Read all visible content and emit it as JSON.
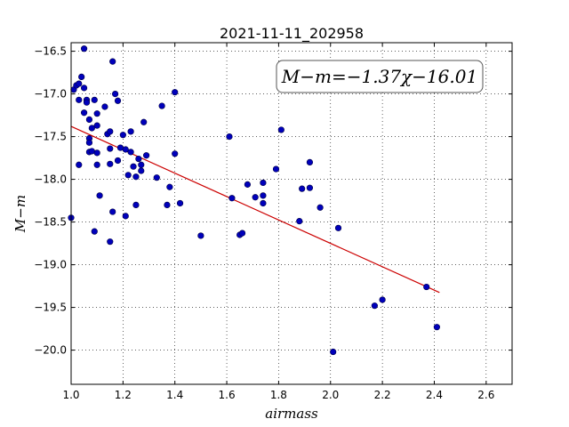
{
  "chart_data": {
    "type": "scatter",
    "title": "2021-11-11_202958",
    "xlabel": "airmass",
    "ylabel": "M−m",
    "xlim": [
      1.0,
      2.7
    ],
    "ylim": [
      -20.4,
      -16.4
    ],
    "y_inverted": true,
    "grid": true,
    "xticks": [
      "1.0",
      "1.2",
      "1.4",
      "1.6",
      "1.8",
      "2.0",
      "2.2",
      "2.4",
      "2.6"
    ],
    "yticks": [
      "−16.5",
      "−17.0",
      "−17.5",
      "−18.0",
      "−18.5",
      "−19.0",
      "−19.5",
      "−20.0"
    ],
    "annotation": "M−m=−1.37χ−16.01",
    "fit": {
      "slope": -1.37,
      "intercept": -16.01,
      "x_range": [
        1.0,
        2.42
      ],
      "color": "#cc0000"
    },
    "point_color": "#0000bb",
    "points": [
      [
        1.0,
        -18.45
      ],
      [
        1.01,
        -16.95
      ],
      [
        1.02,
        -16.9
      ],
      [
        1.03,
        -17.07
      ],
      [
        1.03,
        -16.88
      ],
      [
        1.03,
        -17.83
      ],
      [
        1.04,
        -16.8
      ],
      [
        1.05,
        -16.47
      ],
      [
        1.05,
        -16.93
      ],
      [
        1.05,
        -17.22
      ],
      [
        1.06,
        -17.07
      ],
      [
        1.06,
        -17.1
      ],
      [
        1.07,
        -17.3
      ],
      [
        1.07,
        -17.52
      ],
      [
        1.07,
        -17.57
      ],
      [
        1.07,
        -17.68
      ],
      [
        1.08,
        -17.4
      ],
      [
        1.08,
        -17.67
      ],
      [
        1.09,
        -17.07
      ],
      [
        1.09,
        -18.61
      ],
      [
        1.1,
        -17.37
      ],
      [
        1.1,
        -17.23
      ],
      [
        1.1,
        -17.69
      ],
      [
        1.1,
        -17.83
      ],
      [
        1.11,
        -18.19
      ],
      [
        1.13,
        -17.15
      ],
      [
        1.14,
        -17.47
      ],
      [
        1.15,
        -17.44
      ],
      [
        1.15,
        -17.64
      ],
      [
        1.15,
        -17.82
      ],
      [
        1.15,
        -18.73
      ],
      [
        1.16,
        -18.38
      ],
      [
        1.16,
        -16.62
      ],
      [
        1.17,
        -17.0
      ],
      [
        1.18,
        -17.08
      ],
      [
        1.18,
        -17.78
      ],
      [
        1.19,
        -17.63
      ],
      [
        1.2,
        -17.48
      ],
      [
        1.21,
        -17.65
      ],
      [
        1.21,
        -18.43
      ],
      [
        1.22,
        -17.95
      ],
      [
        1.23,
        -17.68
      ],
      [
        1.23,
        -17.44
      ],
      [
        1.24,
        -17.85
      ],
      [
        1.25,
        -17.97
      ],
      [
        1.25,
        -18.3
      ],
      [
        1.26,
        -17.76
      ],
      [
        1.27,
        -17.9
      ],
      [
        1.27,
        -17.83
      ],
      [
        1.28,
        -17.33
      ],
      [
        1.29,
        -17.72
      ],
      [
        1.33,
        -17.98
      ],
      [
        1.35,
        -17.14
      ],
      [
        1.37,
        -18.3
      ],
      [
        1.38,
        -18.09
      ],
      [
        1.4,
        -16.98
      ],
      [
        1.4,
        -17.7
      ],
      [
        1.42,
        -18.28
      ],
      [
        1.5,
        -18.66
      ],
      [
        1.61,
        -17.5
      ],
      [
        1.62,
        -18.22
      ],
      [
        1.65,
        -18.65
      ],
      [
        1.66,
        -18.63
      ],
      [
        1.68,
        -18.06
      ],
      [
        1.71,
        -18.21
      ],
      [
        1.74,
        -18.04
      ],
      [
        1.74,
        -18.19
      ],
      [
        1.74,
        -18.28
      ],
      [
        1.79,
        -17.88
      ],
      [
        1.81,
        -17.42
      ],
      [
        1.88,
        -18.49
      ],
      [
        1.89,
        -18.11
      ],
      [
        1.92,
        -18.1
      ],
      [
        1.92,
        -17.8
      ],
      [
        1.96,
        -18.33
      ],
      [
        2.01,
        -20.02
      ],
      [
        2.03,
        -18.57
      ],
      [
        2.17,
        -19.48
      ],
      [
        2.2,
        -19.41
      ],
      [
        2.37,
        -19.26
      ],
      [
        2.41,
        -19.73
      ]
    ]
  }
}
